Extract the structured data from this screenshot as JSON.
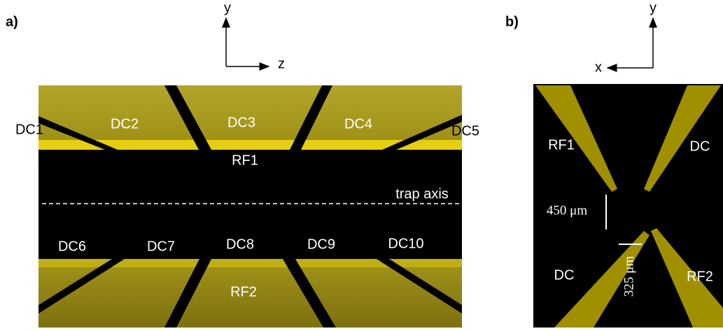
{
  "panel_a": {
    "label": "a)",
    "axis_vertical": "y",
    "axis_horizontal": "z",
    "electrodes": [
      "DC1",
      "DC2",
      "DC3",
      "DC4",
      "DC5",
      "RF1",
      "DC6",
      "DC7",
      "DC8",
      "DC9",
      "DC10",
      "RF2"
    ],
    "annotation": "trap axis"
  },
  "panel_b": {
    "label": "b)",
    "axis_vertical": "y",
    "axis_horizontal": "x",
    "electrodes": [
      "RF1",
      "DC",
      "DC",
      "RF2"
    ],
    "scale_labels": [
      "450 μm",
      "325 μm"
    ]
  }
}
